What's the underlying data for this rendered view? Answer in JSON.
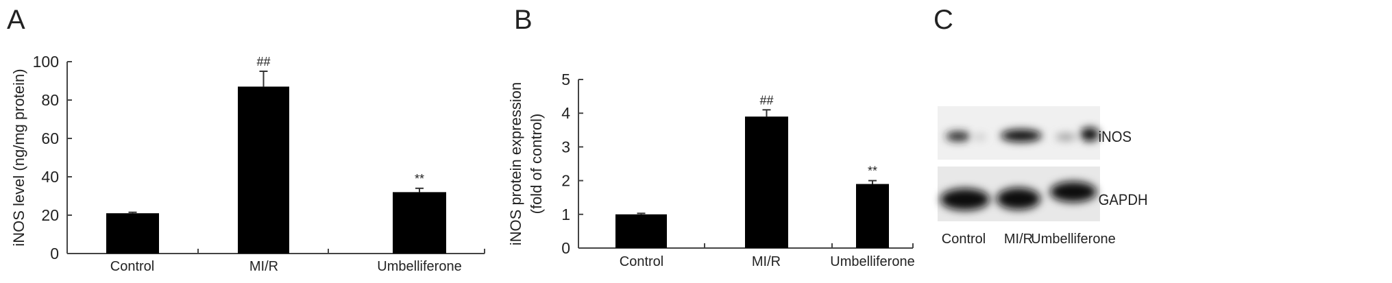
{
  "panel_labels": [
    "A",
    "B",
    "C"
  ],
  "chart_data": [
    {
      "type": "bar",
      "panel": "A",
      "categories": [
        "Control",
        "MI/R",
        "Umbelliferone"
      ],
      "values": [
        21,
        87,
        32
      ],
      "error": [
        0.5,
        8,
        2
      ],
      "annotations": [
        "",
        "##",
        "**"
      ],
      "ylabel": "iNOS level (ng/mg protein)",
      "ylim": [
        0,
        100
      ],
      "yticks": [
        0,
        20,
        40,
        60,
        80,
        100
      ],
      "bar_color": "#000000",
      "grid": false
    },
    {
      "type": "bar",
      "panel": "B",
      "categories": [
        "Control",
        "MI/R",
        "Umbelliferone"
      ],
      "values": [
        1.0,
        3.9,
        1.9
      ],
      "error": [
        0.03,
        0.2,
        0.1
      ],
      "annotations": [
        "",
        "##",
        "**"
      ],
      "ylabel": [
        "iNOS protein expression",
        "(fold of control)"
      ],
      "ylim": [
        0,
        5
      ],
      "yticks": [
        0,
        1,
        2,
        3,
        4,
        5
      ],
      "bar_color": "#000000",
      "grid": false
    }
  ],
  "blot": {
    "panel": "C",
    "rows": [
      "iNOS",
      "GAPDH"
    ],
    "lanes": [
      "Control",
      "MI/R",
      "Umbelliferone"
    ]
  }
}
